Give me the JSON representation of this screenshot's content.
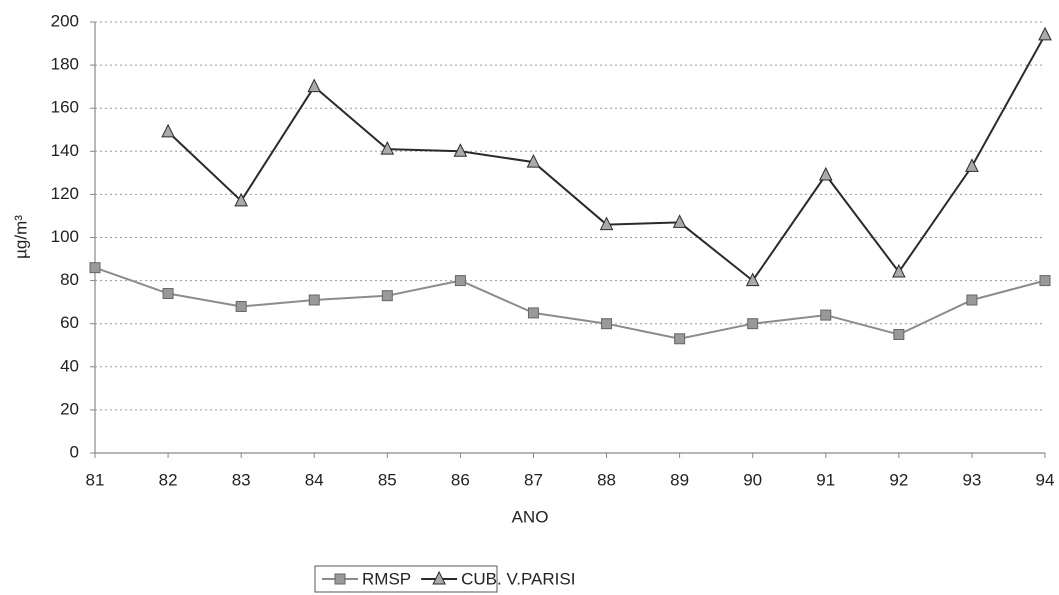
{
  "chart_data": {
    "type": "line",
    "x_label": "ANO",
    "y_label": "µg/m³",
    "categories": [
      "81",
      "82",
      "83",
      "84",
      "85",
      "86",
      "87",
      "88",
      "89",
      "90",
      "91",
      "92",
      "93",
      "94"
    ],
    "series": [
      {
        "name": "RMSP",
        "color": "#8c8c8c",
        "marker": "square",
        "values": [
          86,
          74,
          68,
          71,
          73,
          80,
          65,
          60,
          53,
          60,
          64,
          55,
          71,
          80
        ]
      },
      {
        "name": "CUB. V.PARISI",
        "color": "#2a2a2a",
        "marker": "triangle",
        "values": [
          null,
          149,
          117,
          170,
          141,
          140,
          135,
          106,
          107,
          80,
          129,
          84,
          133,
          194
        ]
      }
    ],
    "ylim": [
      0,
      200
    ],
    "yticks": [
      0,
      20,
      40,
      60,
      80,
      100,
      120,
      140,
      160,
      180,
      200
    ],
    "grid": true,
    "legend": "bottom"
  }
}
